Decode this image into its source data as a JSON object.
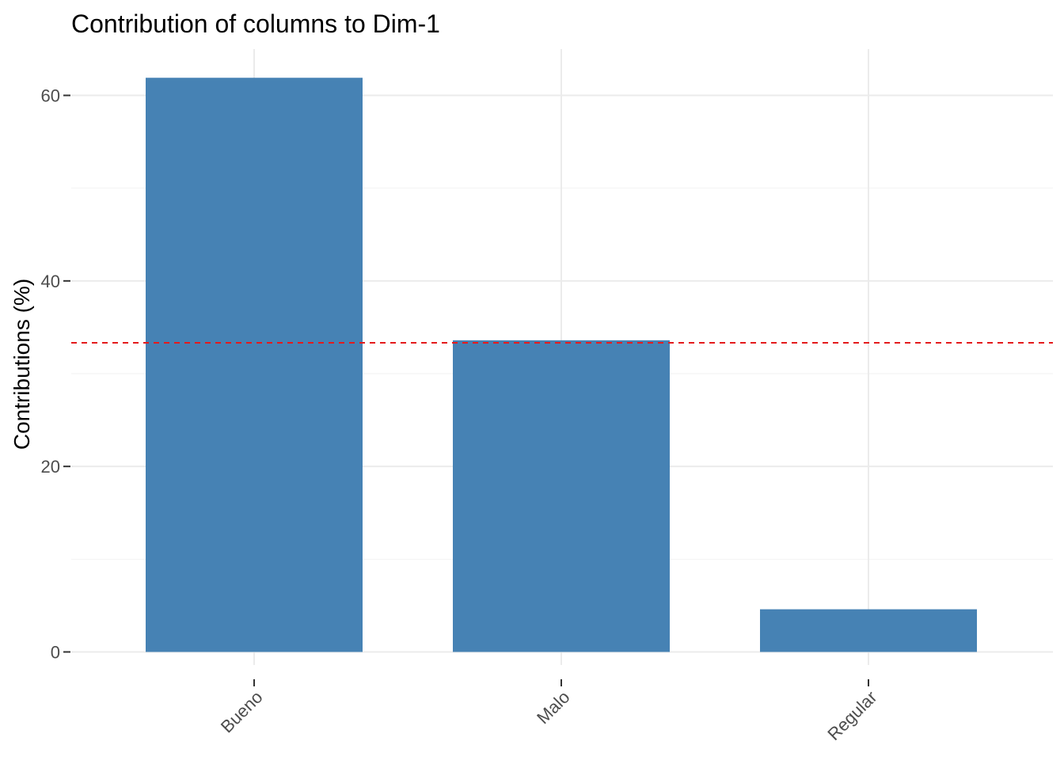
{
  "chart_data": {
    "type": "bar",
    "title": "Contribution of columns to Dim-1",
    "xlabel": "",
    "ylabel": "Contributions (%)",
    "categories": [
      "Bueno",
      "Malo",
      "Regular"
    ],
    "values": [
      61.9,
      33.6,
      4.6
    ],
    "ylim": [
      0,
      65
    ],
    "y_ticks": [
      0,
      20,
      40,
      60
    ],
    "reference_line": {
      "value": 33.33,
      "style": "dashed",
      "color": "#e41a1c"
    },
    "bar_color": "#4682b4",
    "grid": true,
    "legend": "none"
  }
}
